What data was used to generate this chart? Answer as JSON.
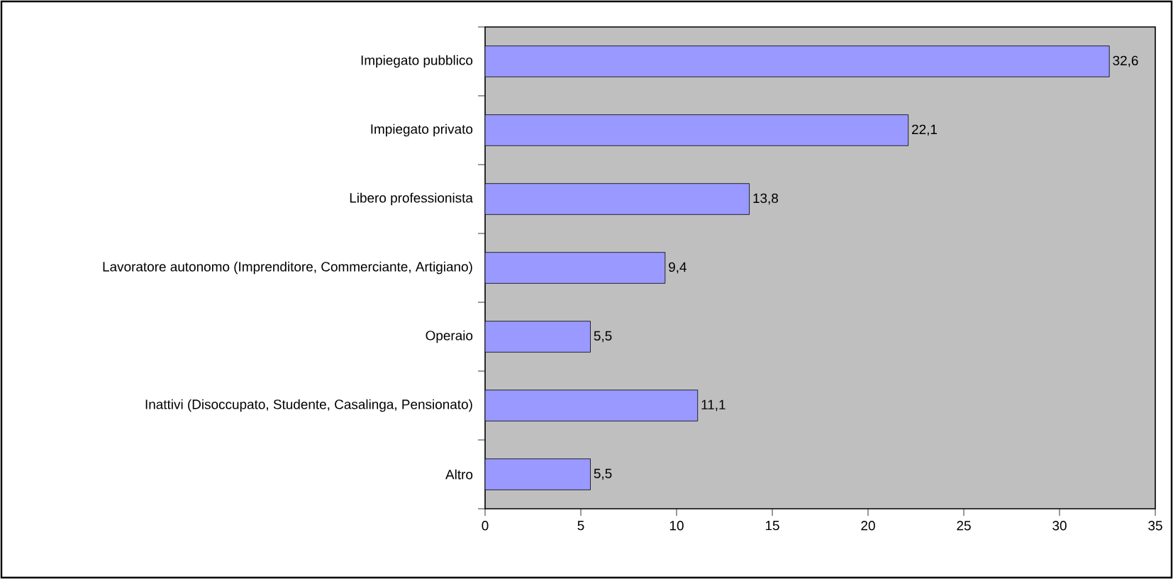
{
  "chart_data": {
    "type": "bar",
    "orientation": "horizontal",
    "categories": [
      "Impiegato pubblico",
      "Impiegato privato",
      "Libero professionista",
      "Lavoratore autonomo (Imprenditore, Commerciante, Artigiano)",
      "Operaio",
      "Inattivi (Disoccupato, Studente, Casalinga, Pensionato)",
      "Altro"
    ],
    "values": [
      32.6,
      22.1,
      13.8,
      9.4,
      5.5,
      11.1,
      5.5
    ],
    "value_labels": [
      "32,6",
      "22,1",
      "13,8",
      "9,4",
      "5,5",
      "11,1",
      "5,5"
    ],
    "color": "#9999ff",
    "xlim": [
      0,
      35
    ],
    "xticks": [
      0,
      5,
      10,
      15,
      20,
      25,
      30,
      35
    ]
  }
}
